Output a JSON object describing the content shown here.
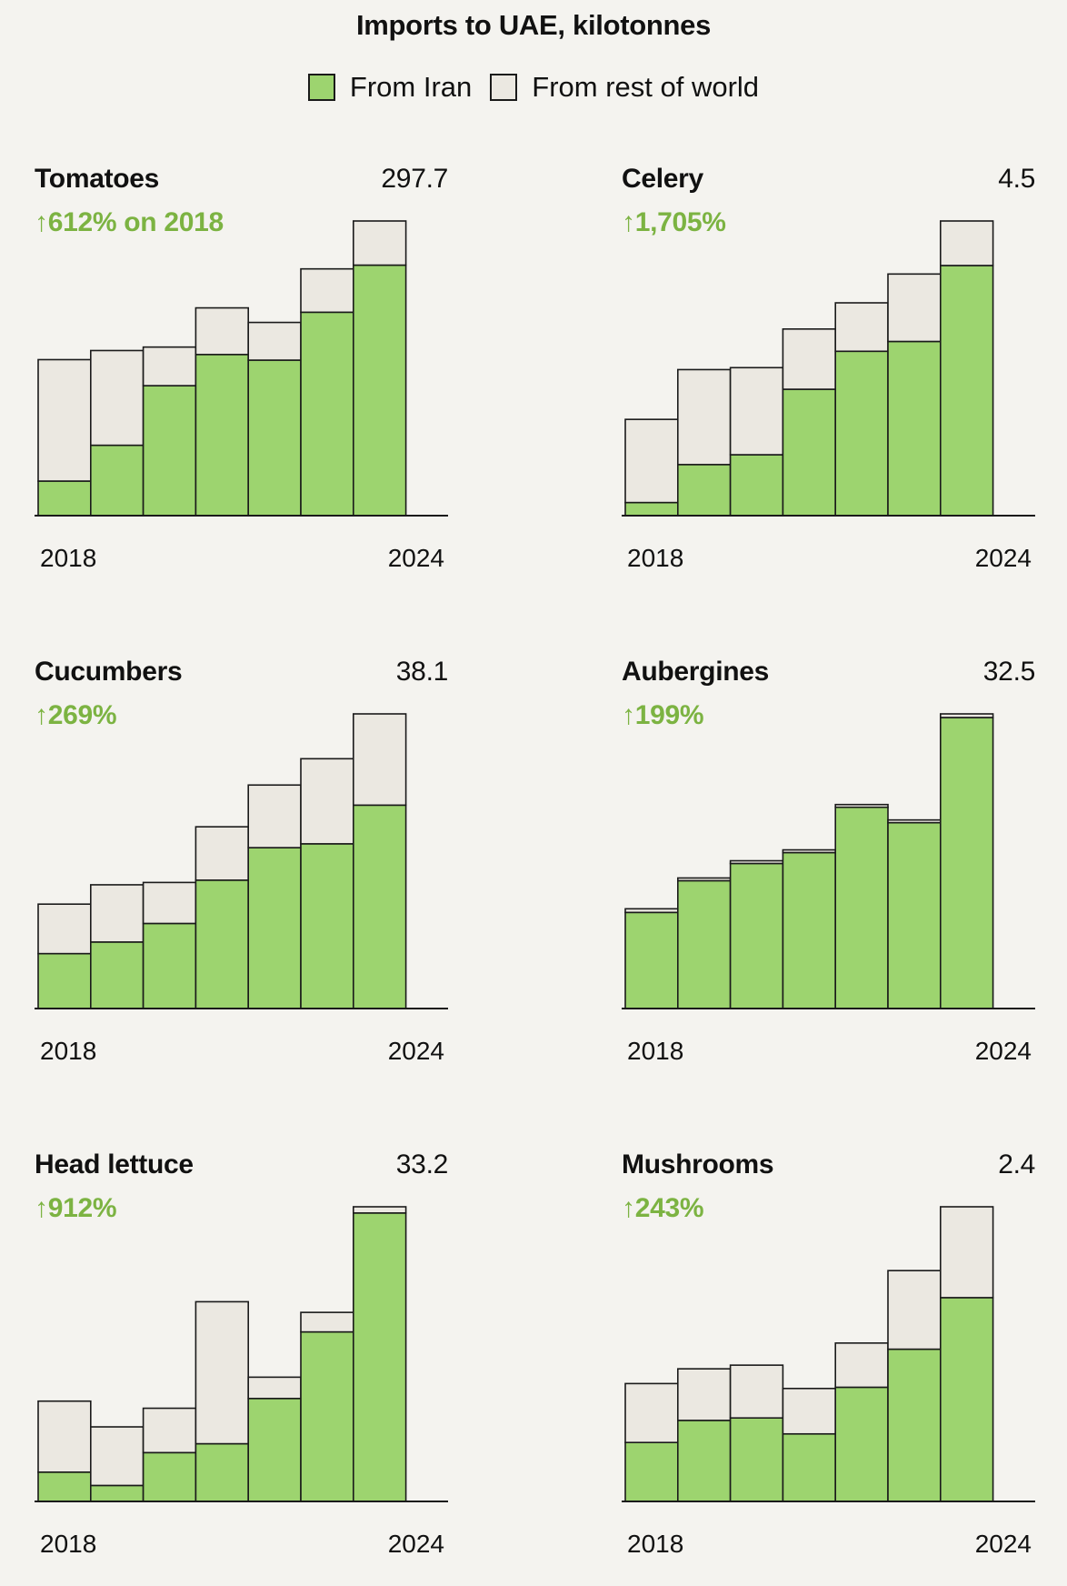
{
  "colors": {
    "iran": "#9dd46f",
    "rest": "#ebe8e1",
    "stroke": "#1a1a1a",
    "accent": "#7cb342",
    "background": "#f4f3ef"
  },
  "chart_data": {
    "type": "bar",
    "stacked": true,
    "title": "Imports to UAE, kilotonnes",
    "legend": {
      "placement": "top-center",
      "items": [
        {
          "key": "iran",
          "label": "From Iran",
          "color": "#9dd46f"
        },
        {
          "key": "rest",
          "label": "From rest of world",
          "color": "#ebe8e1"
        }
      ]
    },
    "years": [
      "2018",
      "2019",
      "2020",
      "2021",
      "2022",
      "2023",
      "2024"
    ],
    "x_labels": {
      "start": "2018",
      "end": "2024"
    },
    "panels": [
      {
        "name": "Tomatoes",
        "total_label": "297.7",
        "change_label": "612% on 2018",
        "ylim": [
          0,
          297.7
        ],
        "series": [
          {
            "name": "From Iran",
            "values": [
              34.9,
              71.1,
              131.3,
              162.8,
              157.1,
              205.5,
              253.1
            ]
          },
          {
            "name": "From rest of world",
            "values": [
              122.7,
              95.7,
              39.0,
              47.1,
              38.1,
              43.8,
              44.6
            ]
          }
        ]
      },
      {
        "name": "Celery",
        "total_label": "4.5",
        "change_label": "1,705%",
        "ylim": [
          0,
          4.5
        ],
        "series": [
          {
            "name": "From Iran",
            "values": [
              0.2,
              0.78,
              0.93,
              1.93,
              2.51,
              2.66,
              3.82
            ]
          },
          {
            "name": "From rest of world",
            "values": [
              1.27,
              1.45,
              1.33,
              0.92,
              0.74,
              1.03,
              0.68
            ]
          }
        ]
      },
      {
        "name": "Cucumbers",
        "total_label": "38.1",
        "change_label": "269%",
        "ylim": [
          0,
          38.1
        ],
        "series": [
          {
            "name": "From Iran",
            "values": [
              7.1,
              8.6,
              11.0,
              16.6,
              20.8,
              21.3,
              26.3
            ]
          },
          {
            "name": "From rest of world",
            "values": [
              6.4,
              7.4,
              5.3,
              6.9,
              8.1,
              11.0,
              11.8
            ]
          }
        ]
      },
      {
        "name": "Aubergines",
        "total_label": "32.5",
        "change_label": "199%",
        "ylim": [
          0,
          32.5
        ],
        "series": [
          {
            "name": "From Iran",
            "values": [
              10.6,
              14.1,
              16.0,
              17.2,
              22.2,
              20.5,
              32.1
            ]
          },
          {
            "name": "From rest of world",
            "values": [
              0.4,
              0.3,
              0.3,
              0.3,
              0.3,
              0.3,
              0.4
            ]
          }
        ]
      },
      {
        "name": "Head lettuce",
        "total_label": "33.2",
        "change_label": "912%",
        "ylim": [
          0,
          33.2
        ],
        "series": [
          {
            "name": "From Iran",
            "values": [
              3.3,
              1.8,
              5.5,
              6.5,
              11.6,
              19.1,
              32.5
            ]
          },
          {
            "name": "From rest of world",
            "values": [
              8.0,
              6.6,
              5.0,
              16.0,
              2.4,
              2.2,
              0.7
            ]
          }
        ]
      },
      {
        "name": "Mushrooms",
        "total_label": "2.4",
        "change_label": "243%",
        "ylim": [
          0,
          2.4
        ],
        "series": [
          {
            "name": "From Iran",
            "values": [
              0.48,
              0.66,
              0.68,
              0.55,
              0.93,
              1.24,
              1.66
            ]
          },
          {
            "name": "From rest of world",
            "values": [
              0.48,
              0.42,
              0.43,
              0.37,
              0.36,
              0.64,
              0.74
            ]
          }
        ]
      }
    ]
  }
}
